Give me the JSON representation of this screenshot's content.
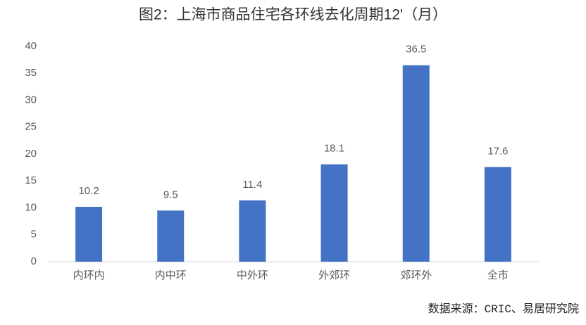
{
  "chart_data": {
    "type": "bar",
    "title": "图2：上海市商品住宅各环线去化周期12'（月）",
    "categories": [
      "内环内",
      "内中环",
      "中外环",
      "外郊环",
      "郊环外",
      "全市"
    ],
    "values": [
      10.2,
      9.5,
      11.4,
      18.1,
      36.5,
      17.6
    ],
    "color": "#4472c4",
    "ylim": [
      0,
      40
    ],
    "yticks": [
      0,
      5,
      10,
      15,
      20,
      25,
      30,
      35,
      40
    ],
    "grid": false,
    "source": "数据来源：CRIC、易居研究院"
  }
}
